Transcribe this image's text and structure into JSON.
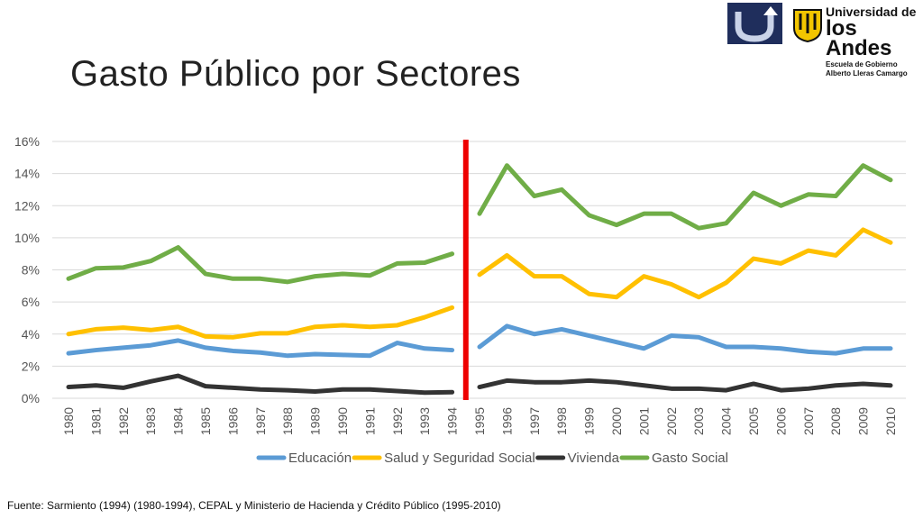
{
  "slide": {
    "title": "Gasto Público por Sectores",
    "source": "Fuente: Sarmiento (1994) (1980-1994), CEPAL y Ministerio de Hacienda y Crédito Público (1995-2010)"
  },
  "logos": {
    "university_line1": "Universidad de",
    "university_line2": "los Andes",
    "school_line1": "Escuela de Gobierno",
    "school_line2": "Alberto Lleras Camargo"
  },
  "chart_data": {
    "type": "line",
    "ylim": [
      0,
      16
    ],
    "yticks": [
      0,
      2,
      4,
      6,
      8,
      10,
      12,
      14,
      16
    ],
    "ytick_labels": [
      "0%",
      "2%",
      "4%",
      "6%",
      "8%",
      "10%",
      "12%",
      "14%",
      "16%"
    ],
    "grid": true,
    "legend_position": "bottom",
    "break_marker": {
      "between": [
        "1994",
        "1995"
      ],
      "color": "#ee0000"
    },
    "x": [
      "1980",
      "1981",
      "1982",
      "1983",
      "1984",
      "1985",
      "1986",
      "1987",
      "1988",
      "1989",
      "1990",
      "1991",
      "1992",
      "1993",
      "1994",
      "1995",
      "1996",
      "1997",
      "1998",
      "1999",
      "2000",
      "2001",
      "2002",
      "2003",
      "2004",
      "2005",
      "2006",
      "2007",
      "2008",
      "2009",
      "2010"
    ],
    "series": [
      {
        "name": "Educación",
        "color": "#5b9bd5",
        "values": [
          2.8,
          3.0,
          3.15,
          3.3,
          3.6,
          3.15,
          2.95,
          2.85,
          2.65,
          2.75,
          2.7,
          2.65,
          3.45,
          3.1,
          3.0,
          3.2,
          4.5,
          4.0,
          4.3,
          3.9,
          3.5,
          3.1,
          3.9,
          3.8,
          3.2,
          3.2,
          3.1,
          2.9,
          2.8,
          3.1,
          3.1
        ]
      },
      {
        "name": "Salud y Seguridad Social",
        "color": "#ffc000",
        "values": [
          4.0,
          4.3,
          4.4,
          4.25,
          4.45,
          3.85,
          3.8,
          4.05,
          4.05,
          4.45,
          4.55,
          4.45,
          4.55,
          5.05,
          5.65,
          7.7,
          8.9,
          7.6,
          7.6,
          6.5,
          6.3,
          7.6,
          7.1,
          6.3,
          7.2,
          8.7,
          8.4,
          9.2,
          8.9,
          10.5,
          9.7
        ]
      },
      {
        "name": "Vivienda",
        "color": "#333333",
        "values": [
          0.7,
          0.8,
          0.65,
          1.05,
          1.4,
          0.75,
          0.65,
          0.55,
          0.5,
          0.42,
          0.55,
          0.55,
          0.45,
          0.35,
          0.38,
          0.7,
          1.1,
          1.0,
          1.0,
          1.1,
          1.0,
          0.8,
          0.6,
          0.6,
          0.5,
          0.9,
          0.5,
          0.6,
          0.8,
          0.9,
          0.8
        ]
      },
      {
        "name": "Gasto Social",
        "color": "#70ad47",
        "values": [
          7.45,
          8.1,
          8.15,
          8.55,
          9.4,
          7.75,
          7.45,
          7.45,
          7.25,
          7.6,
          7.75,
          7.65,
          8.4,
          8.45,
          9.0,
          11.5,
          14.5,
          12.6,
          13.0,
          11.4,
          10.8,
          11.5,
          11.5,
          10.6,
          10.9,
          12.8,
          12.0,
          12.7,
          12.6,
          14.5,
          13.6
        ]
      }
    ]
  }
}
